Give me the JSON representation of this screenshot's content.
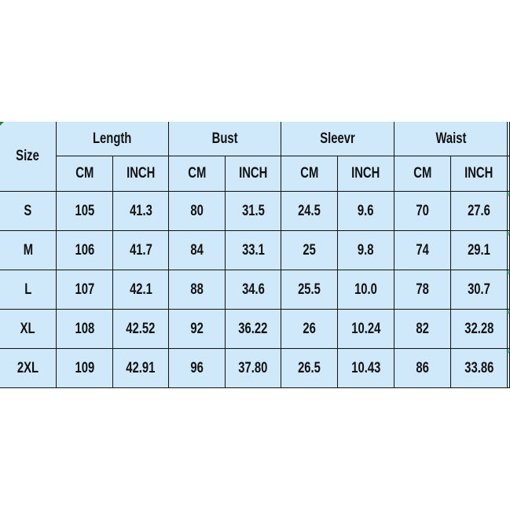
{
  "table": {
    "size_label": "Size",
    "groups": [
      "Length",
      "Bust",
      "Sleevr",
      "Waist"
    ],
    "units": [
      "CM",
      "INCH"
    ],
    "rows": [
      {
        "size": "S",
        "values": [
          "105",
          "41.3",
          "80",
          "31.5",
          "24.5",
          "9.6",
          "70",
          "27.6"
        ]
      },
      {
        "size": "M",
        "values": [
          "106",
          "41.7",
          "84",
          "33.1",
          "25",
          "9.8",
          "74",
          "29.1"
        ]
      },
      {
        "size": "L",
        "values": [
          "107",
          "42.1",
          "88",
          "34.6",
          "25.5",
          "10.0",
          "78",
          "30.7"
        ]
      },
      {
        "size": "XL",
        "values": [
          "108",
          "42.52",
          "92",
          "36.22",
          "26",
          "10.24",
          "82",
          "32.28"
        ]
      },
      {
        "size": "2XL",
        "values": [
          "109",
          "42.91",
          "96",
          "37.80",
          "26.5",
          "10.43",
          "86",
          "33.86"
        ]
      }
    ],
    "background_color": "#cfe9fa"
  }
}
